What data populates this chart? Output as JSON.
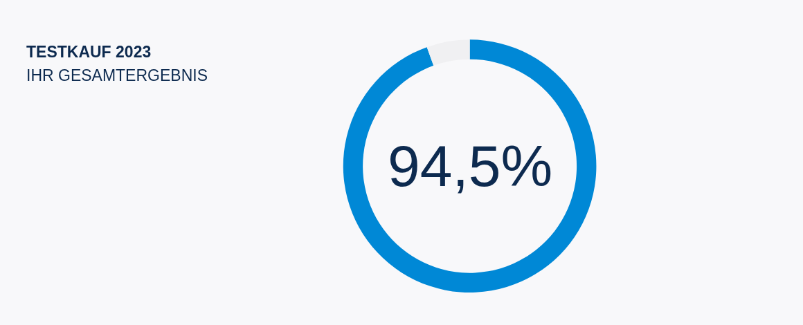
{
  "chart_data": {
    "type": "donut",
    "title": "TESTKAUF 2023",
    "subtitle": "IHR GESAMTERGEBNIS",
    "categories": [
      null,
      null
    ],
    "values": [
      94.5,
      5.5
    ],
    "colors": [
      "#0088d6",
      "#f0f0f2"
    ],
    "annotations": [
      "94,5%"
    ],
    "legend": false
  }
}
